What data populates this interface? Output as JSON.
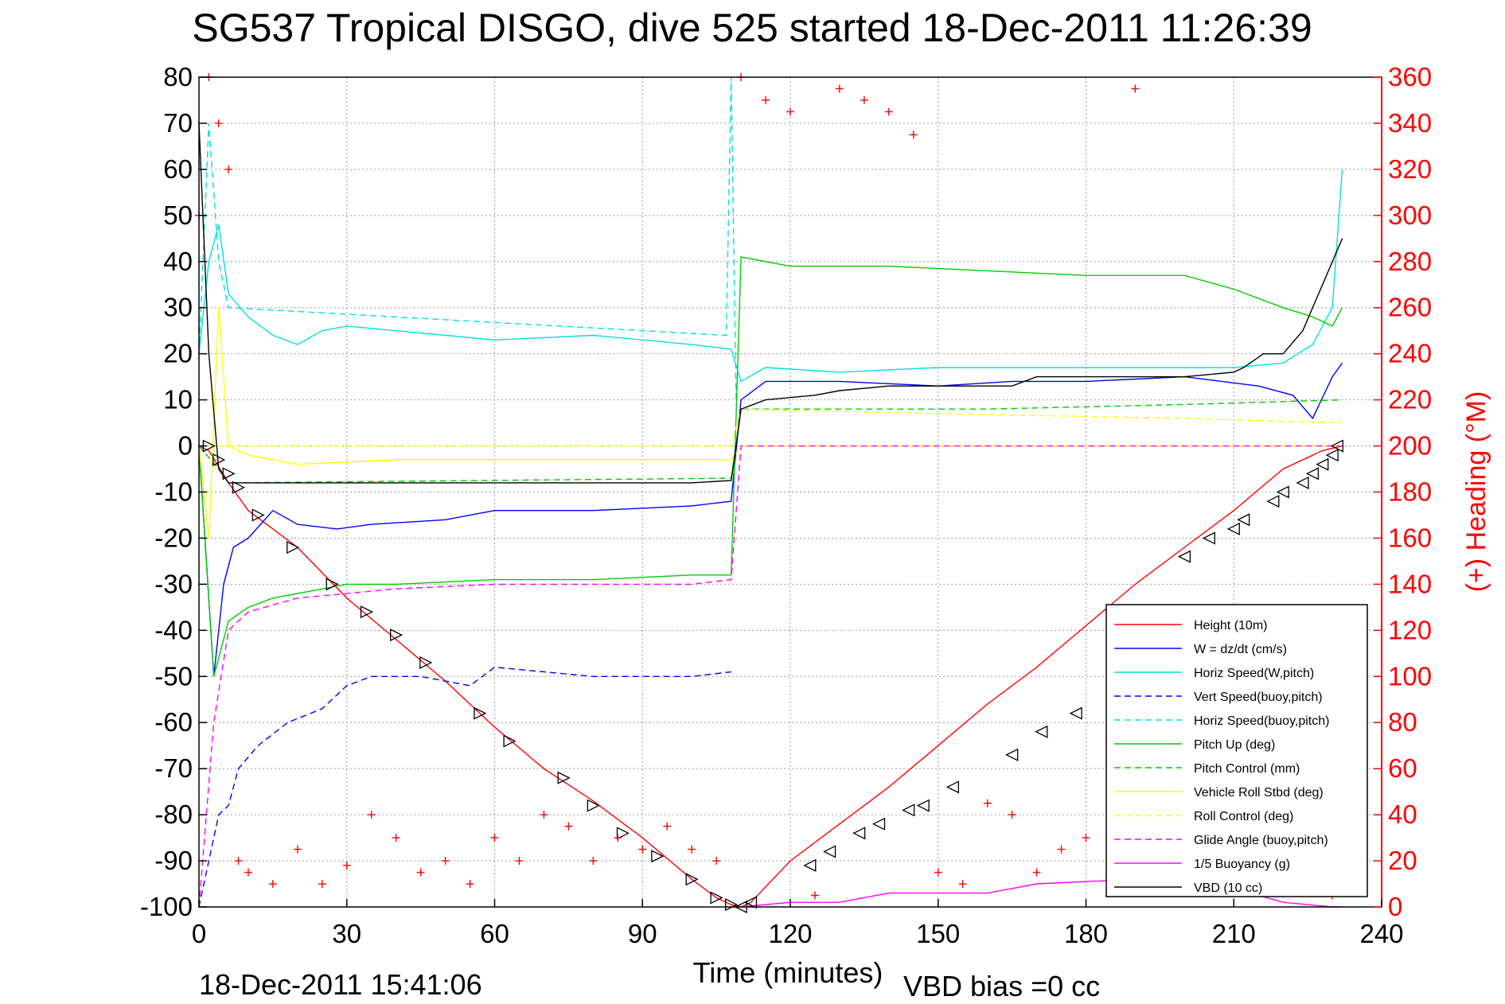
{
  "chart_data": {
    "type": "line",
    "title": "SG537 Tropical DISGO, dive 525 started 18-Dec-2011 11:26:39",
    "xlabel": "Time (minutes)",
    "ylabel_right": "(+) Heading (°M)",
    "xlim": [
      0,
      240
    ],
    "ylim_left": [
      -100,
      80
    ],
    "ylim_right": [
      0,
      360
    ],
    "x_ticks": [
      "0",
      "30",
      "60",
      "90",
      "120",
      "150",
      "180",
      "210",
      "240"
    ],
    "y_ticks_left": [
      "80",
      "70",
      "60",
      "50",
      "40",
      "30",
      "20",
      "10",
      "0",
      "-10",
      "-20",
      "-30",
      "-40",
      "-50",
      "-60",
      "-70",
      "-80",
      "-90",
      "-100"
    ],
    "y_ticks_right": [
      "360",
      "340",
      "320",
      "300",
      "280",
      "260",
      "240",
      "220",
      "200",
      "180",
      "160",
      "140",
      "120",
      "100",
      "80",
      "60",
      "40",
      "20",
      "0"
    ],
    "grid": true,
    "legend_position": "bottom-right",
    "footer_left": "18-Dec-2011 15:41:06",
    "footer_right": "VBD bias =0 cc",
    "series": [
      {
        "name": "Height (10m)",
        "color": "#ff0000",
        "style": "solid",
        "axis": "left",
        "x": [
          0,
          2,
          6,
          10,
          20,
          30,
          40,
          50,
          60,
          70,
          80,
          90,
          100,
          105,
          108,
          110,
          112,
          120,
          130,
          140,
          150,
          160,
          170,
          180,
          190,
          200,
          210,
          220,
          228,
          232
        ],
        "y": [
          0,
          -1,
          -8,
          -14,
          -22,
          -33,
          -42,
          -51,
          -61,
          -70,
          -77,
          -85,
          -94,
          -98,
          -99.5,
          -100,
          -99,
          -90,
          -82,
          -74,
          -65,
          -56,
          -48,
          -39,
          -30,
          -22,
          -14,
          -5,
          -1,
          0
        ]
      },
      {
        "name": "W = dz/dt (cm/s)",
        "color": "#0000ff",
        "style": "solid",
        "axis": "left",
        "x": [
          0,
          3,
          5,
          7,
          10,
          15,
          20,
          28,
          35,
          50,
          60,
          80,
          100,
          108,
          110,
          115,
          130,
          150,
          165,
          180,
          200,
          215,
          222,
          226,
          230,
          232
        ],
        "y": [
          0,
          -50,
          -30,
          -22,
          -20,
          -14,
          -17,
          -18,
          -17,
          -16,
          -14,
          -14,
          -13,
          -12,
          10,
          14,
          14,
          13,
          14,
          14,
          15,
          13,
          11,
          6,
          15,
          18
        ]
      },
      {
        "name": "Horiz Speed(W,pitch)",
        "color": "#00e0e0",
        "style": "solid",
        "axis": "left",
        "x": [
          0,
          2,
          4,
          6,
          10,
          15,
          20,
          25,
          30,
          40,
          50,
          60,
          80,
          100,
          108,
          110,
          115,
          130,
          150,
          170,
          190,
          200,
          210,
          220,
          226,
          230,
          232
        ],
        "y": [
          20,
          40,
          48,
          33,
          28,
          24,
          22,
          25,
          26,
          25,
          24,
          23,
          24,
          22,
          21,
          14,
          17,
          16,
          17,
          17,
          17,
          17,
          17,
          18,
          22,
          30,
          60
        ]
      },
      {
        "name": "Vert Speed(buoy,pitch)",
        "color": "#0000ff",
        "style": "dashed",
        "axis": "left",
        "x": [
          0,
          4,
          6,
          8,
          12,
          18,
          25,
          30,
          35,
          45,
          55,
          60,
          80,
          100,
          108
        ],
        "y": [
          -100,
          -80,
          -78,
          -70,
          -65,
          -60,
          -57,
          -52,
          -50,
          -50,
          -52,
          -48,
          -50,
          -50,
          -49
        ]
      },
      {
        "name": "Horiz Speed(buoy,pitch)",
        "color": "#00e0e0",
        "style": "dashed",
        "axis": "left",
        "x": [
          0,
          2,
          4,
          6,
          107,
          108,
          109
        ],
        "y": [
          20,
          70,
          40,
          30,
          24,
          80,
          10
        ]
      },
      {
        "name": "Pitch Up (deg)",
        "color": "#00cc00",
        "style": "solid",
        "axis": "left",
        "x": [
          0,
          3,
          6,
          10,
          15,
          20,
          30,
          40,
          60,
          80,
          100,
          108,
          110,
          120,
          140,
          160,
          180,
          200,
          210,
          220,
          226,
          230,
          232
        ],
        "y": [
          0,
          -50,
          -38,
          -35,
          -33,
          -32,
          -30,
          -30,
          -29,
          -29,
          -28,
          -28,
          41,
          39,
          39,
          38,
          37,
          37,
          34,
          30,
          28,
          26,
          30
        ]
      },
      {
        "name": "Pitch Control (mm)",
        "color": "#00cc00",
        "style": "dashed",
        "axis": "left",
        "x": [
          0,
          4,
          6,
          108,
          110,
          120,
          160,
          200,
          232
        ],
        "y": [
          0,
          -5,
          -8,
          -7,
          8,
          8,
          8,
          9,
          10
        ]
      },
      {
        "name": "Vehicle Roll Stbd (deg)",
        "color": "#ffff00",
        "style": "solid",
        "axis": "left",
        "x": [
          0,
          2,
          4,
          6,
          10,
          20,
          40,
          60,
          80,
          100,
          108,
          110,
          140,
          180,
          200,
          220,
          232
        ],
        "y": [
          0,
          -20,
          30,
          0,
          -2,
          -4,
          -3,
          -3,
          -3,
          -3,
          -3,
          0,
          0,
          0,
          0,
          0,
          0
        ]
      },
      {
        "name": "Roll Control (deg)",
        "color": "#ffff00",
        "style": "dashed",
        "axis": "left",
        "x": [
          0,
          5,
          10,
          50,
          100,
          108,
          110,
          150,
          200,
          232
        ],
        "y": [
          0,
          0,
          0,
          0,
          0,
          0,
          8,
          7,
          6,
          5
        ]
      },
      {
        "name": "Glide Angle (buoy,pitch)",
        "color": "#ff00ff",
        "style": "dashed",
        "axis": "left",
        "x": [
          0,
          3,
          6,
          10,
          20,
          40,
          60,
          80,
          100,
          108,
          110,
          232
        ],
        "y": [
          -100,
          -60,
          -40,
          -36,
          -33,
          -31,
          -30,
          -30,
          -30,
          -29,
          0,
          0
        ]
      },
      {
        "name": "1/5 Buoyancy (g)",
        "color": "#ff00ff",
        "style": "solid",
        "axis": "left",
        "x": [
          110,
          120,
          130,
          140,
          160,
          170,
          190,
          210,
          220,
          230,
          232
        ],
        "y": [
          -100,
          -99,
          -99,
          -97,
          -97,
          -95,
          -94,
          -96,
          -99,
          -100,
          -100
        ]
      },
      {
        "name": "VBD (10 cc)",
        "color": "#000000",
        "style": "solid",
        "axis": "left",
        "x": [
          0,
          2,
          4,
          6,
          20,
          40,
          60,
          80,
          100,
          108,
          109,
          110,
          115,
          125,
          130,
          140,
          150,
          165,
          170,
          180,
          200,
          210,
          212,
          216,
          220,
          224,
          226,
          228,
          230,
          232
        ],
        "y": [
          70,
          20,
          -5,
          -8,
          -8,
          -8,
          -8,
          -8,
          -8,
          -7.5,
          0,
          8,
          10,
          11,
          12,
          13,
          13,
          13,
          15,
          15,
          15,
          16,
          17,
          20,
          20,
          25,
          30,
          35,
          40,
          45
        ]
      },
      {
        "name": "Heading (deg M)",
        "color": "#ff0000",
        "style": "markers",
        "marker": "+",
        "axis": "right",
        "x": [
          0,
          2,
          4,
          6,
          8,
          10,
          15,
          20,
          25,
          30,
          35,
          40,
          45,
          50,
          55,
          60,
          65,
          70,
          75,
          80,
          85,
          90,
          95,
          100,
          105,
          110,
          115,
          120,
          125,
          130,
          135,
          140,
          145,
          150,
          155,
          160,
          165,
          170,
          175,
          180,
          185,
          190,
          195,
          200,
          205,
          210,
          215,
          220,
          225,
          230
        ],
        "y": [
          300,
          360,
          340,
          320,
          20,
          15,
          10,
          25,
          10,
          18,
          40,
          30,
          15,
          20,
          10,
          30,
          20,
          40,
          35,
          20,
          30,
          25,
          35,
          25,
          20,
          360,
          350,
          345,
          5,
          355,
          350,
          345,
          335,
          15,
          10,
          45,
          40,
          15,
          25,
          30,
          20,
          355,
          15,
          10,
          20,
          15,
          25,
          10,
          20,
          5
        ]
      }
    ],
    "markers": {
      "name": "Triangles on depth profile",
      "color": "#000000",
      "x": [
        2,
        4,
        6,
        8,
        12,
        19,
        27,
        34,
        40,
        46,
        57,
        63,
        74,
        80,
        86,
        93,
        100,
        105,
        108,
        110,
        112,
        124,
        128,
        134,
        138,
        144,
        147,
        153,
        165,
        171,
        178,
        200,
        205,
        210,
        212,
        218,
        220,
        224,
        226,
        228,
        230,
        231
      ],
      "y": [
        0,
        -3,
        -6,
        -9,
        -15,
        -22,
        -30,
        -36,
        -41,
        -47,
        -58,
        -64,
        -72,
        -78,
        -84,
        -89,
        -94,
        -98,
        -99.5,
        -100,
        -99,
        -91,
        -88,
        -84,
        -82,
        -79,
        -78,
        -74,
        -67,
        -62,
        -58,
        -24,
        -20,
        -18,
        -16,
        -12,
        -10,
        -8,
        -6,
        -4,
        -2,
        0
      ]
    }
  }
}
